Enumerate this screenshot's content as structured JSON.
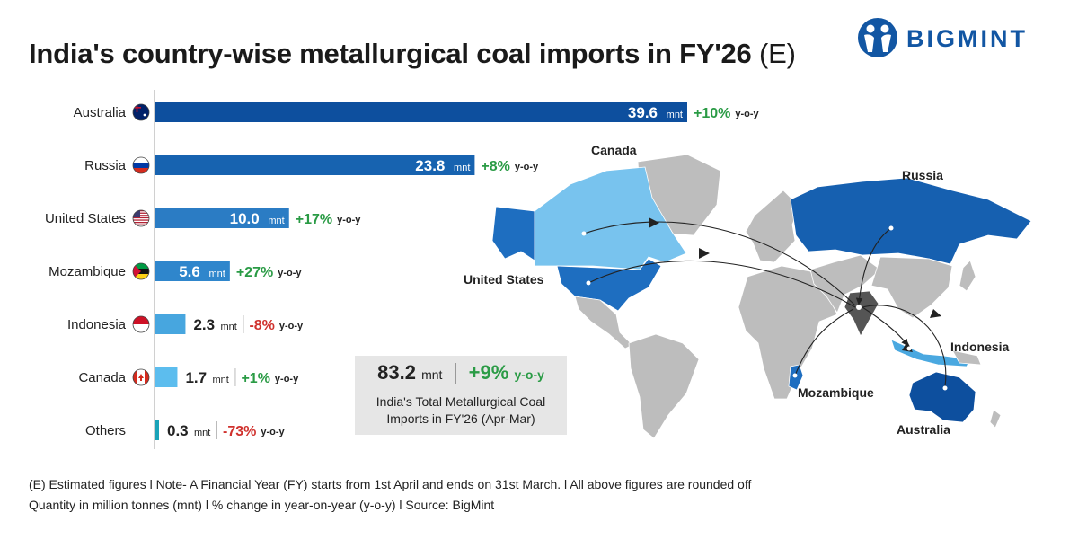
{
  "title": {
    "main": "India's country-wise metallurgical coal imports in FY'26",
    "suffix": "(E)"
  },
  "brand": {
    "name": "BIGMINT",
    "color": "#1256a3"
  },
  "chart_data": {
    "type": "bar",
    "orientation": "horizontal",
    "unit": "mnt",
    "categories": [
      "Australia",
      "Russia",
      "United States",
      "Mozambique",
      "Indonesia",
      "Canada",
      "Others"
    ],
    "values": [
      39.6,
      23.8,
      10.0,
      5.6,
      2.3,
      1.7,
      0.3
    ],
    "value_labels": [
      "39.6",
      "23.8",
      "10.0",
      "5.6",
      "2.3",
      "1.7",
      "0.3"
    ],
    "yoy_change": [
      "+10%",
      "+8%",
      "+17%",
      "+27%",
      "-8%",
      "+1%",
      "-73%"
    ],
    "yoy_label": "y-o-y",
    "flags": [
      "australia-flag",
      "russia-flag",
      "usa-flag",
      "mozambique-flag",
      "indonesia-flag",
      "canada-flag",
      ""
    ],
    "bar_colors": [
      "#0d4f9e",
      "#1763b0",
      "#2b7cc4",
      "#2f86cc",
      "#47a6df",
      "#5cbdee",
      "#1aa3b8"
    ],
    "positive_color": "#2a9b45",
    "negative_color": "#d0312d"
  },
  "summary": {
    "total": "83.2",
    "unit": "mnt",
    "change": "+9%",
    "yoy_label": "y-o-y",
    "line1": "India's Total Metallurgical Coal",
    "line2": "Imports in FY'26 (Apr-Mar)"
  },
  "map": {
    "labels": [
      "Canada",
      "Russia",
      "United States",
      "Indonesia",
      "Mozambique",
      "Australia"
    ],
    "colors": {
      "base": "#bdbdbd",
      "india": "#555555",
      "canada": "#78c3ee",
      "usa": "#1e6ec0",
      "russia": "#1660b0",
      "australia": "#0d4f9e",
      "indonesia": "#4aa8e0"
    }
  },
  "footnotes": {
    "line1": "(E) Estimated figures  l  Note- A Financial Year (FY) starts from 1st April and ends on 31st March.  l  All above figures are rounded off",
    "line2": "Quantity in million tonnes (mnt)  l  % change in year-on-year (y-o-y)  l  Source: BigMint"
  }
}
